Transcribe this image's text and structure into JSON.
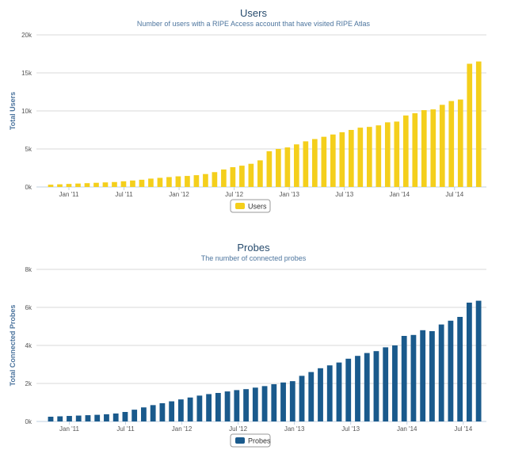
{
  "chart_data": [
    {
      "type": "bar",
      "title": "Users",
      "subtitle": "Number of users with a RIPE Access account that have visited RIPE Atlas",
      "ylabel": "Total Users",
      "xlabel": "",
      "ylim": [
        0,
        20000
      ],
      "yticks": [
        "0k",
        "5k",
        "10k",
        "15k",
        "20k"
      ],
      "xticks": [
        "Jan '11",
        "Jul '11",
        "Jan '12",
        "Jul '12",
        "Jan '13",
        "Jul '13",
        "Jan '14",
        "Jul '14"
      ],
      "grid": true,
      "legend": "bottom-center",
      "series": [
        {
          "name": "Users",
          "color": "#f4cf1c",
          "values": [
            300,
            350,
            400,
            450,
            500,
            550,
            600,
            650,
            750,
            850,
            950,
            1100,
            1200,
            1300,
            1400,
            1450,
            1550,
            1700,
            1950,
            2300,
            2600,
            2800,
            3050,
            3500,
            4700,
            5000,
            5200,
            5600,
            6000,
            6300,
            6600,
            6900,
            7200,
            7500,
            7800,
            7900,
            8100,
            8500,
            8600,
            9400,
            9700,
            10100,
            10200,
            10800,
            11300,
            11500,
            16200,
            16500
          ]
        }
      ]
    },
    {
      "type": "bar",
      "title": "Probes",
      "subtitle": "The number of connected probes",
      "ylabel": "Total Connected Probes",
      "xlabel": "",
      "ylim": [
        0,
        8000
      ],
      "yticks": [
        "0k",
        "2k",
        "4k",
        "6k",
        "8k"
      ],
      "xticks": [
        "Jan '11",
        "Jul '11",
        "Jan '12",
        "Jul '12",
        "Jan '13",
        "Jul '13",
        "Jan '14",
        "Jul '14"
      ],
      "grid": true,
      "legend": "bottom-center",
      "series": [
        {
          "name": "Probes",
          "color": "#1a5a8c",
          "values": [
            250,
            270,
            290,
            310,
            330,
            350,
            380,
            420,
            500,
            620,
            740,
            860,
            960,
            1060,
            1160,
            1260,
            1360,
            1440,
            1500,
            1580,
            1650,
            1700,
            1780,
            1860,
            1960,
            2050,
            2120,
            2400,
            2600,
            2800,
            2950,
            3100,
            3300,
            3450,
            3600,
            3700,
            3900,
            4000,
            4500,
            4550,
            4800,
            4750,
            5100,
            5300,
            5500,
            6250,
            6350
          ]
        }
      ]
    }
  ]
}
